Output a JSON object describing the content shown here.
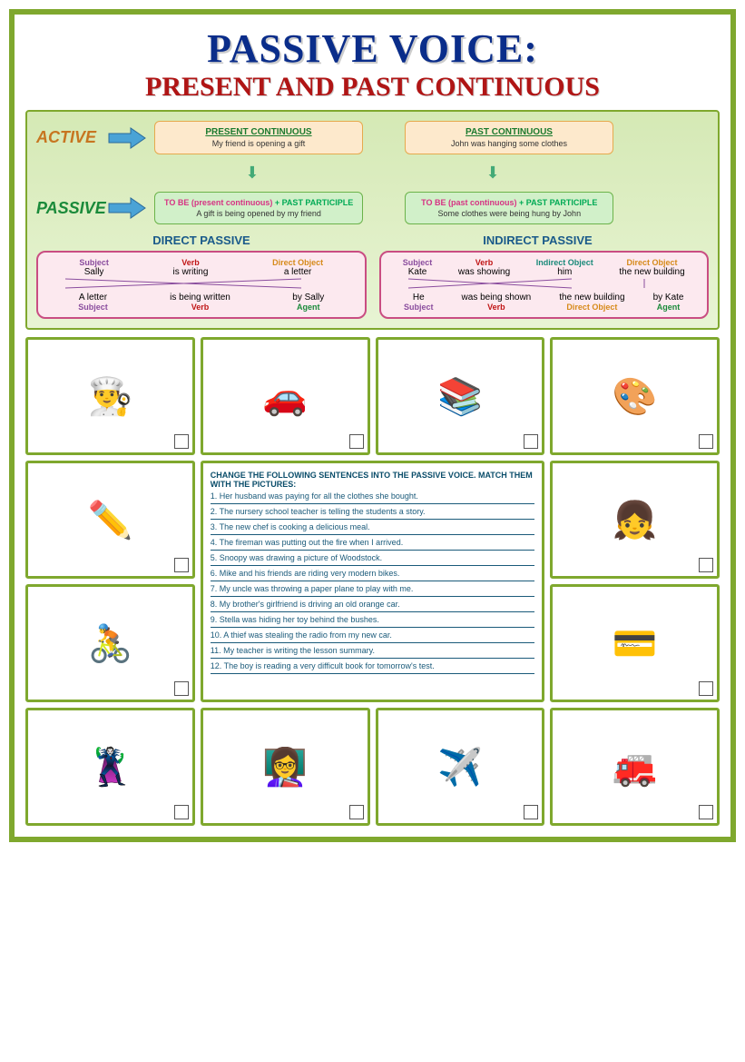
{
  "title": {
    "main": "PASSIVE VOICE:",
    "sub": "PRESENT AND PAST CONTINUOUS"
  },
  "labels": {
    "active": "ACTIVE",
    "passive": "PASSIVE"
  },
  "boxes": {
    "presCont": {
      "title": "PRESENT CONTINUOUS",
      "text": "My friend is opening a gift"
    },
    "pastCont": {
      "title": "PAST CONTINUOUS",
      "text": "John was hanging some clothes"
    },
    "presPass": {
      "formula": "TO BE (present continuous) + PAST PARTICIPLE",
      "text": "A gift is being opened by my friend"
    },
    "pastPass": {
      "formula": "TO BE (past continuous) + PAST PARTICIPLE",
      "text": "Some clothes were being hung by John"
    }
  },
  "passiveTitles": {
    "direct": "DIRECT PASSIVE",
    "indirect": "INDIRECT PASSIVE"
  },
  "directBox": {
    "top": {
      "subject": "Sally",
      "verb": "is writing",
      "object": "a letter"
    },
    "bottom": {
      "subject": "A letter",
      "verb": "is being written",
      "agent": "by Sally"
    },
    "labelsTop": {
      "l1": "Subject",
      "l2": "Verb",
      "l3": "Direct Object"
    },
    "labelsBottom": {
      "l1": "Subject",
      "l2": "Verb",
      "l3": "Agent"
    }
  },
  "indirectBox": {
    "top": {
      "subject": "Kate",
      "verb": "was showing",
      "iobj": "him",
      "dobj": "the new building"
    },
    "bottom": {
      "subject": "He",
      "verb": "was being shown",
      "dobj": "the new building",
      "agent": "by Kate"
    },
    "labelsTop": {
      "l1": "Subject",
      "l2": "Verb",
      "l3": "Indirect Object",
      "l4": "Direct Object"
    },
    "labelsBottom": {
      "l1": "Subject",
      "l2": "Verb",
      "l3": "Direct Object",
      "l4": "Agent"
    }
  },
  "instruction": "CHANGE THE FOLLOWING SENTENCES INTO THE PASSIVE VOICE. MATCH THEM WITH THE PICTURES:",
  "sentences": [
    "1. Her husband was paying for all the clothes she bought.",
    "2. The nursery school teacher is telling the students a story.",
    "3. The new chef is cooking a delicious meal.",
    "4. The fireman was putting out the fire when I arrived.",
    "5. Snoopy was drawing a picture of Woodstock.",
    "6. Mike and his friends are riding very modern bikes.",
    "7. My uncle was throwing a paper plane to play with me.",
    "8. My brother's girlfriend is driving an old orange car.",
    "9. Stella was hiding her toy behind the bushes.",
    "10. A thief was stealing the radio from my new car.",
    "11. My teacher is writing the lesson summary.",
    "12. The boy is reading a very difficult book for tomorrow's test."
  ],
  "clips": [
    "👨‍🍳",
    "🚗",
    "📚",
    "🎨",
    "✏️",
    "👧",
    "🚴",
    "💳",
    "🦹",
    "👩‍🏫",
    "✈️",
    "🚒"
  ],
  "colors": {
    "border": "#7fa82e",
    "titleMain": "#0a2d8a",
    "titleSub": "#b01515"
  }
}
